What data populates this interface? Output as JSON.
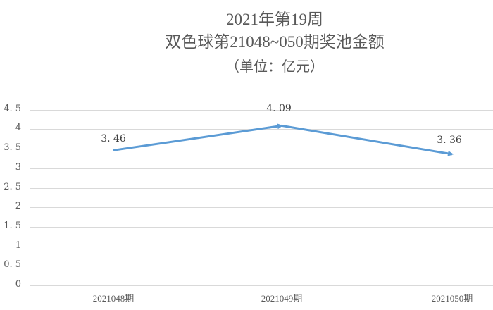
{
  "title": {
    "line1": "2021年第19周",
    "line2": "双色球第21048~050期奖池金额",
    "line3": "（单位：亿元）"
  },
  "colors": {
    "line": "#5B9BD5",
    "text": "#595959",
    "grid": "#D9D9D9"
  },
  "chart_data": {
    "type": "line",
    "title": "2021年第19周 双色球第21048~050期奖池金额（单位：亿元）",
    "categories": [
      "2021048期",
      "2021049期",
      "2021050期"
    ],
    "series": [
      {
        "name": "奖池金额",
        "values": [
          3.46,
          4.09,
          3.36
        ]
      }
    ],
    "data_labels": [
      "3.46",
      "4.09",
      "3.36"
    ],
    "xlabel": "",
    "ylabel": "",
    "ylim": [
      0,
      4.5
    ],
    "yticks": [
      "0",
      "0.5",
      "1",
      "1.5",
      "2",
      "2.5",
      "3",
      "3.5",
      "4",
      "4.5"
    ],
    "ytick_labels": [
      "0",
      "0. 5",
      "1",
      "1. 5",
      "2",
      "2. 5",
      "3",
      "3. 5",
      "4",
      "4. 5"
    ],
    "grid": true,
    "legend": false,
    "marker": "arrow"
  }
}
